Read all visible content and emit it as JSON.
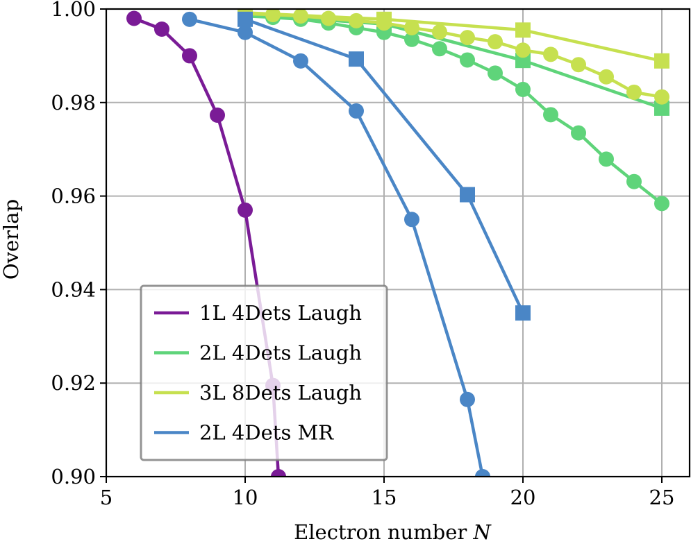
{
  "chart_data": {
    "type": "line",
    "title": "",
    "xlabel": "Electron number",
    "xlabel_var": "N",
    "ylabel": "Overlap",
    "xlim": [
      5,
      26
    ],
    "ylim": [
      0.9,
      1.0
    ],
    "xticks": [
      5,
      10,
      15,
      20,
      25
    ],
    "yticks": [
      0.9,
      0.92,
      0.94,
      0.96,
      0.98,
      1.0
    ],
    "xtick_labels": [
      "5",
      "10",
      "15",
      "20",
      "25"
    ],
    "ytick_labels": [
      "0.90",
      "0.92",
      "0.94",
      "0.96",
      "0.98",
      "1.00"
    ],
    "grid": true,
    "legend_position": "lower-left",
    "legend": [
      "1L 4Dets Laugh",
      "2L 4Dets Laugh",
      "3L 8Dets Laugh",
      "2L 4Dets MR"
    ],
    "series": [
      {
        "name": "1L 4Dets Laugh",
        "color": "#7a1b96",
        "marker": "circle",
        "x": [
          6,
          7,
          8,
          9,
          10,
          11,
          11.2
        ],
        "y": [
          0.998,
          0.9957,
          0.99,
          0.9773,
          0.957,
          0.9195,
          0.9
        ]
      },
      {
        "name": "2L 4Dets Laugh",
        "color": "#5fd47a",
        "marker": "circle",
        "x": [
          10,
          11,
          12,
          13,
          14,
          15,
          16,
          17,
          18,
          19,
          20,
          21,
          22,
          23,
          24,
          25
        ],
        "y": [
          0.9985,
          0.9982,
          0.9978,
          0.997,
          0.996,
          0.995,
          0.9935,
          0.9915,
          0.9891,
          0.9863,
          0.9828,
          0.9774,
          0.9735,
          0.9679,
          0.9631,
          0.9584
        ]
      },
      {
        "name": "2L 4Dets Laugh",
        "color": "#5fd47a",
        "marker": "square",
        "x": [
          10,
          15,
          20,
          25
        ],
        "y": [
          0.9988,
          0.9968,
          0.989,
          0.9788
        ]
      },
      {
        "name": "3L 8Dets Laugh",
        "color": "#c6e04f",
        "marker": "circle",
        "x": [
          10,
          11,
          12,
          13,
          14,
          15,
          16,
          17,
          18,
          19,
          20,
          21,
          22,
          23,
          24,
          25
        ],
        "y": [
          0.999,
          0.9988,
          0.9985,
          0.998,
          0.9975,
          0.997,
          0.996,
          0.9951,
          0.9939,
          0.993,
          0.9912,
          0.9903,
          0.9881,
          0.9855,
          0.9822,
          0.9812
        ]
      },
      {
        "name": "3L 8Dets Laugh",
        "color": "#c6e04f",
        "marker": "square",
        "x": [
          10,
          15,
          20,
          25
        ],
        "y": [
          0.9992,
          0.9978,
          0.9955,
          0.9889
        ]
      },
      {
        "name": "2L 4Dets MR",
        "color": "#4a86c6",
        "marker": "circle",
        "x": [
          8,
          10,
          12,
          14,
          16,
          18,
          18.55
        ],
        "y": [
          0.9978,
          0.995,
          0.9889,
          0.9782,
          0.955,
          0.9165,
          0.9
        ]
      },
      {
        "name": "2L 4Dets MR",
        "color": "#4a86c6",
        "marker": "square",
        "x": [
          10,
          14,
          18,
          20
        ],
        "y": [
          0.9978,
          0.9893,
          0.9603,
          0.935
        ]
      }
    ]
  }
}
